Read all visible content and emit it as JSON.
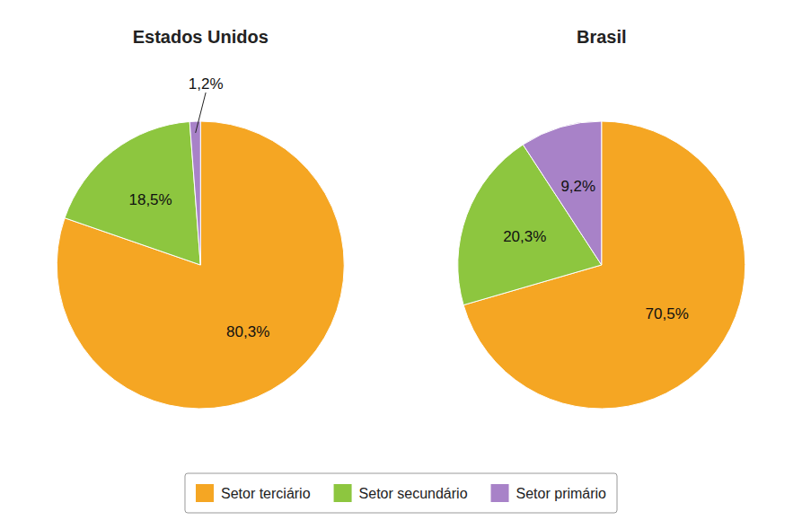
{
  "chart_data": [
    {
      "type": "pie",
      "title": "Estados Unidos",
      "categories": [
        "Setor terciário",
        "Setor secundário",
        "Setor primário"
      ],
      "values": [
        80.3,
        18.5,
        1.2
      ],
      "value_labels": [
        "80,3%",
        "18,5%",
        "1,2%"
      ],
      "colors": [
        "#F5A623",
        "#8DC63F",
        "#A882C8"
      ],
      "data_labels": true,
      "legend": "bottom"
    },
    {
      "type": "pie",
      "title": "Brasil",
      "categories": [
        "Setor terciário",
        "Setor secundário",
        "Setor primário"
      ],
      "values": [
        70.5,
        20.3,
        9.2
      ],
      "value_labels": [
        "70,5%",
        "20,3%",
        "9,2%"
      ],
      "colors": [
        "#F5A623",
        "#8DC63F",
        "#A882C8"
      ],
      "data_labels": true
    }
  ]
}
